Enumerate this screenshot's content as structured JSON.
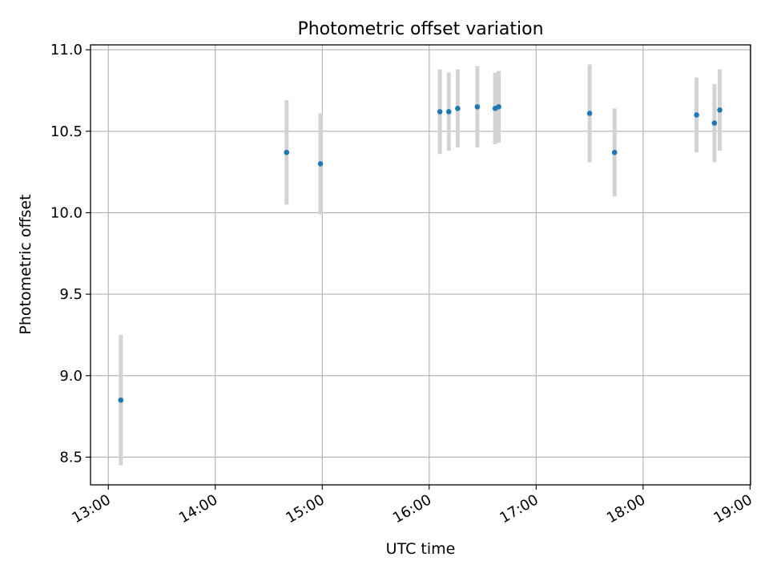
{
  "chart_data": {
    "type": "scatter",
    "title": "Photometric offset variation",
    "xlabel": "UTC time",
    "ylabel": "Photometric offset",
    "xlim": [
      "12:50",
      "19:00"
    ],
    "ylim": [
      8.33,
      11.03
    ],
    "grid": true,
    "x_ticks": [
      "13:00",
      "14:00",
      "15:00",
      "16:00",
      "17:00",
      "18:00",
      "19:00"
    ],
    "y_ticks": [
      8.5,
      9.0,
      9.5,
      10.0,
      10.5,
      11.0
    ],
    "y_tick_labels": [
      "8.5",
      "9.0",
      "9.5",
      "10.0",
      "10.5",
      "11.0"
    ],
    "points_color": "#1f77b4",
    "errorbar_color": "#d3d3d3",
    "points": [
      {
        "x": "13:07",
        "y": 8.85,
        "err": 0.4
      },
      {
        "x": "14:40",
        "y": 10.37,
        "err": 0.32
      },
      {
        "x": "14:59",
        "y": 10.3,
        "err": 0.31
      },
      {
        "x": "16:06",
        "y": 10.62,
        "err": 0.26
      },
      {
        "x": "16:11",
        "y": 10.62,
        "err": 0.24
      },
      {
        "x": "16:16",
        "y": 10.64,
        "err": 0.24
      },
      {
        "x": "16:27",
        "y": 10.65,
        "err": 0.25
      },
      {
        "x": "16:37",
        "y": 10.64,
        "err": 0.22
      },
      {
        "x": "16:39",
        "y": 10.65,
        "err": 0.22
      },
      {
        "x": "17:30",
        "y": 10.61,
        "err": 0.3
      },
      {
        "x": "17:44",
        "y": 10.37,
        "err": 0.27
      },
      {
        "x": "18:30",
        "y": 10.6,
        "err": 0.23
      },
      {
        "x": "18:40",
        "y": 10.55,
        "err": 0.24
      },
      {
        "x": "18:43",
        "y": 10.63,
        "err": 0.25
      }
    ]
  }
}
